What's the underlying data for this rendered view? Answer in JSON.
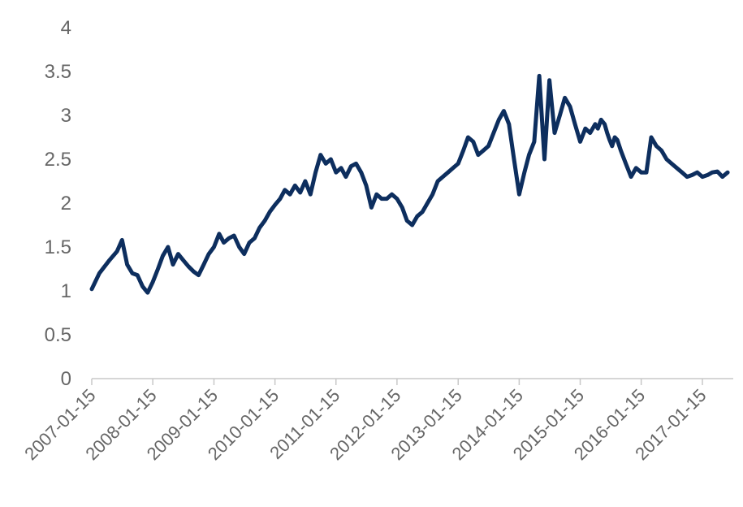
{
  "chart_data": {
    "type": "line",
    "title": "",
    "xlabel": "",
    "ylabel": "",
    "ylim": [
      0,
      4
    ],
    "yticks": [
      "0",
      "0.5",
      "1",
      "1.5",
      "2",
      "2.5",
      "3",
      "3.5",
      "4"
    ],
    "xticks": [
      "2007-01-15",
      "2008-01-15",
      "2009-01-15",
      "2010-01-15",
      "2011-01-15",
      "2012-01-15",
      "2013-01-15",
      "2014-01-15",
      "2015-01-15",
      "2016-01-15",
      "2017-01-15"
    ],
    "grid": false,
    "legend": "none",
    "line_color": "#0d2e5e",
    "series": [
      {
        "x": [
          "2007-01-15",
          "2007-03-01",
          "2007-05-01",
          "2007-06-15",
          "2007-07-15",
          "2007-08-15",
          "2007-09-15",
          "2007-10-15",
          "2007-11-15",
          "2007-12-15",
          "2008-01-15",
          "2008-02-15",
          "2008-03-15",
          "2008-04-15",
          "2008-05-15",
          "2008-06-15",
          "2008-07-15",
          "2008-08-15",
          "2008-09-15",
          "2008-10-15",
          "2008-11-15",
          "2008-12-15",
          "2009-01-15",
          "2009-02-15",
          "2009-03-15",
          "2009-04-15",
          "2009-05-15",
          "2009-06-15",
          "2009-07-15",
          "2009-08-15",
          "2009-09-15",
          "2009-10-15",
          "2009-11-15",
          "2009-12-15",
          "2010-01-15",
          "2010-02-15",
          "2010-03-15",
          "2010-04-15",
          "2010-05-15",
          "2010-06-15",
          "2010-07-15",
          "2010-08-15",
          "2010-09-15",
          "2010-10-15",
          "2010-11-15",
          "2010-12-15",
          "2011-01-15",
          "2011-02-15",
          "2011-03-15",
          "2011-04-15",
          "2011-05-15",
          "2011-06-15",
          "2011-07-15",
          "2011-08-15",
          "2011-09-15",
          "2011-10-15",
          "2011-11-15",
          "2011-12-15",
          "2012-01-15",
          "2012-02-15",
          "2012-03-15",
          "2012-04-15",
          "2012-05-15",
          "2012-06-15",
          "2012-07-15",
          "2012-08-15",
          "2012-09-15",
          "2012-10-15",
          "2012-11-15",
          "2012-12-15",
          "2013-01-15",
          "2013-02-15",
          "2013-03-15",
          "2013-04-15",
          "2013-05-15",
          "2013-06-15",
          "2013-07-15",
          "2013-08-15",
          "2013-09-15",
          "2013-10-15",
          "2013-11-15",
          "2013-12-15",
          "2014-01-15",
          "2014-02-15",
          "2014-03-15",
          "2014-04-15",
          "2014-05-15",
          "2014-06-15",
          "2014-07-15",
          "2014-08-15",
          "2014-09-15",
          "2014-10-15",
          "2014-11-15",
          "2014-12-15",
          "2015-01-15",
          "2015-02-15",
          "2015-03-15",
          "2015-04-15",
          "2015-05-01",
          "2015-05-20",
          "2015-06-10",
          "2015-06-25",
          "2015-07-10",
          "2015-07-25",
          "2015-08-10",
          "2015-08-25",
          "2015-09-15",
          "2015-10-15",
          "2015-11-15",
          "2015-12-15",
          "2016-01-15",
          "2016-02-15",
          "2016-03-15",
          "2016-04-15",
          "2016-05-15",
          "2016-06-15",
          "2016-07-15",
          "2016-08-15",
          "2016-09-15",
          "2016-10-15",
          "2016-11-15",
          "2016-12-15",
          "2017-01-15",
          "2017-02-15",
          "2017-03-15",
          "2017-04-15",
          "2017-05-15",
          "2017-06-15"
        ],
        "values": [
          1.02,
          1.2,
          1.35,
          1.45,
          1.58,
          1.3,
          1.2,
          1.18,
          1.05,
          0.98,
          1.1,
          1.25,
          1.4,
          1.5,
          1.3,
          1.42,
          1.35,
          1.28,
          1.22,
          1.18,
          1.3,
          1.42,
          1.5,
          1.65,
          1.55,
          1.6,
          1.63,
          1.5,
          1.42,
          1.55,
          1.6,
          1.72,
          1.8,
          1.9,
          1.98,
          2.05,
          2.15,
          2.1,
          2.2,
          2.12,
          2.25,
          2.1,
          2.35,
          2.55,
          2.45,
          2.5,
          2.35,
          2.4,
          2.3,
          2.42,
          2.45,
          2.35,
          2.2,
          1.95,
          2.1,
          2.05,
          2.05,
          2.1,
          2.05,
          1.95,
          1.8,
          1.75,
          1.85,
          1.9,
          2.0,
          2.1,
          2.25,
          2.3,
          2.35,
          2.4,
          2.45,
          2.6,
          2.75,
          2.7,
          2.55,
          2.6,
          2.65,
          2.8,
          2.95,
          3.05,
          2.9,
          2.5,
          2.1,
          2.35,
          2.55,
          2.7,
          3.45,
          2.5,
          3.4,
          2.8,
          3.0,
          3.2,
          3.1,
          2.9,
          2.7,
          2.85,
          2.8,
          2.9,
          2.85,
          2.95,
          2.9,
          2.8,
          2.72,
          2.65,
          2.75,
          2.72,
          2.6,
          2.45,
          2.3,
          2.4,
          2.35,
          2.35,
          2.75,
          2.65,
          2.6,
          2.5,
          2.45,
          2.4,
          2.35,
          2.3,
          2.32,
          2.35,
          2.3,
          2.32,
          2.35,
          2.36,
          2.3,
          2.35
        ]
      }
    ]
  }
}
